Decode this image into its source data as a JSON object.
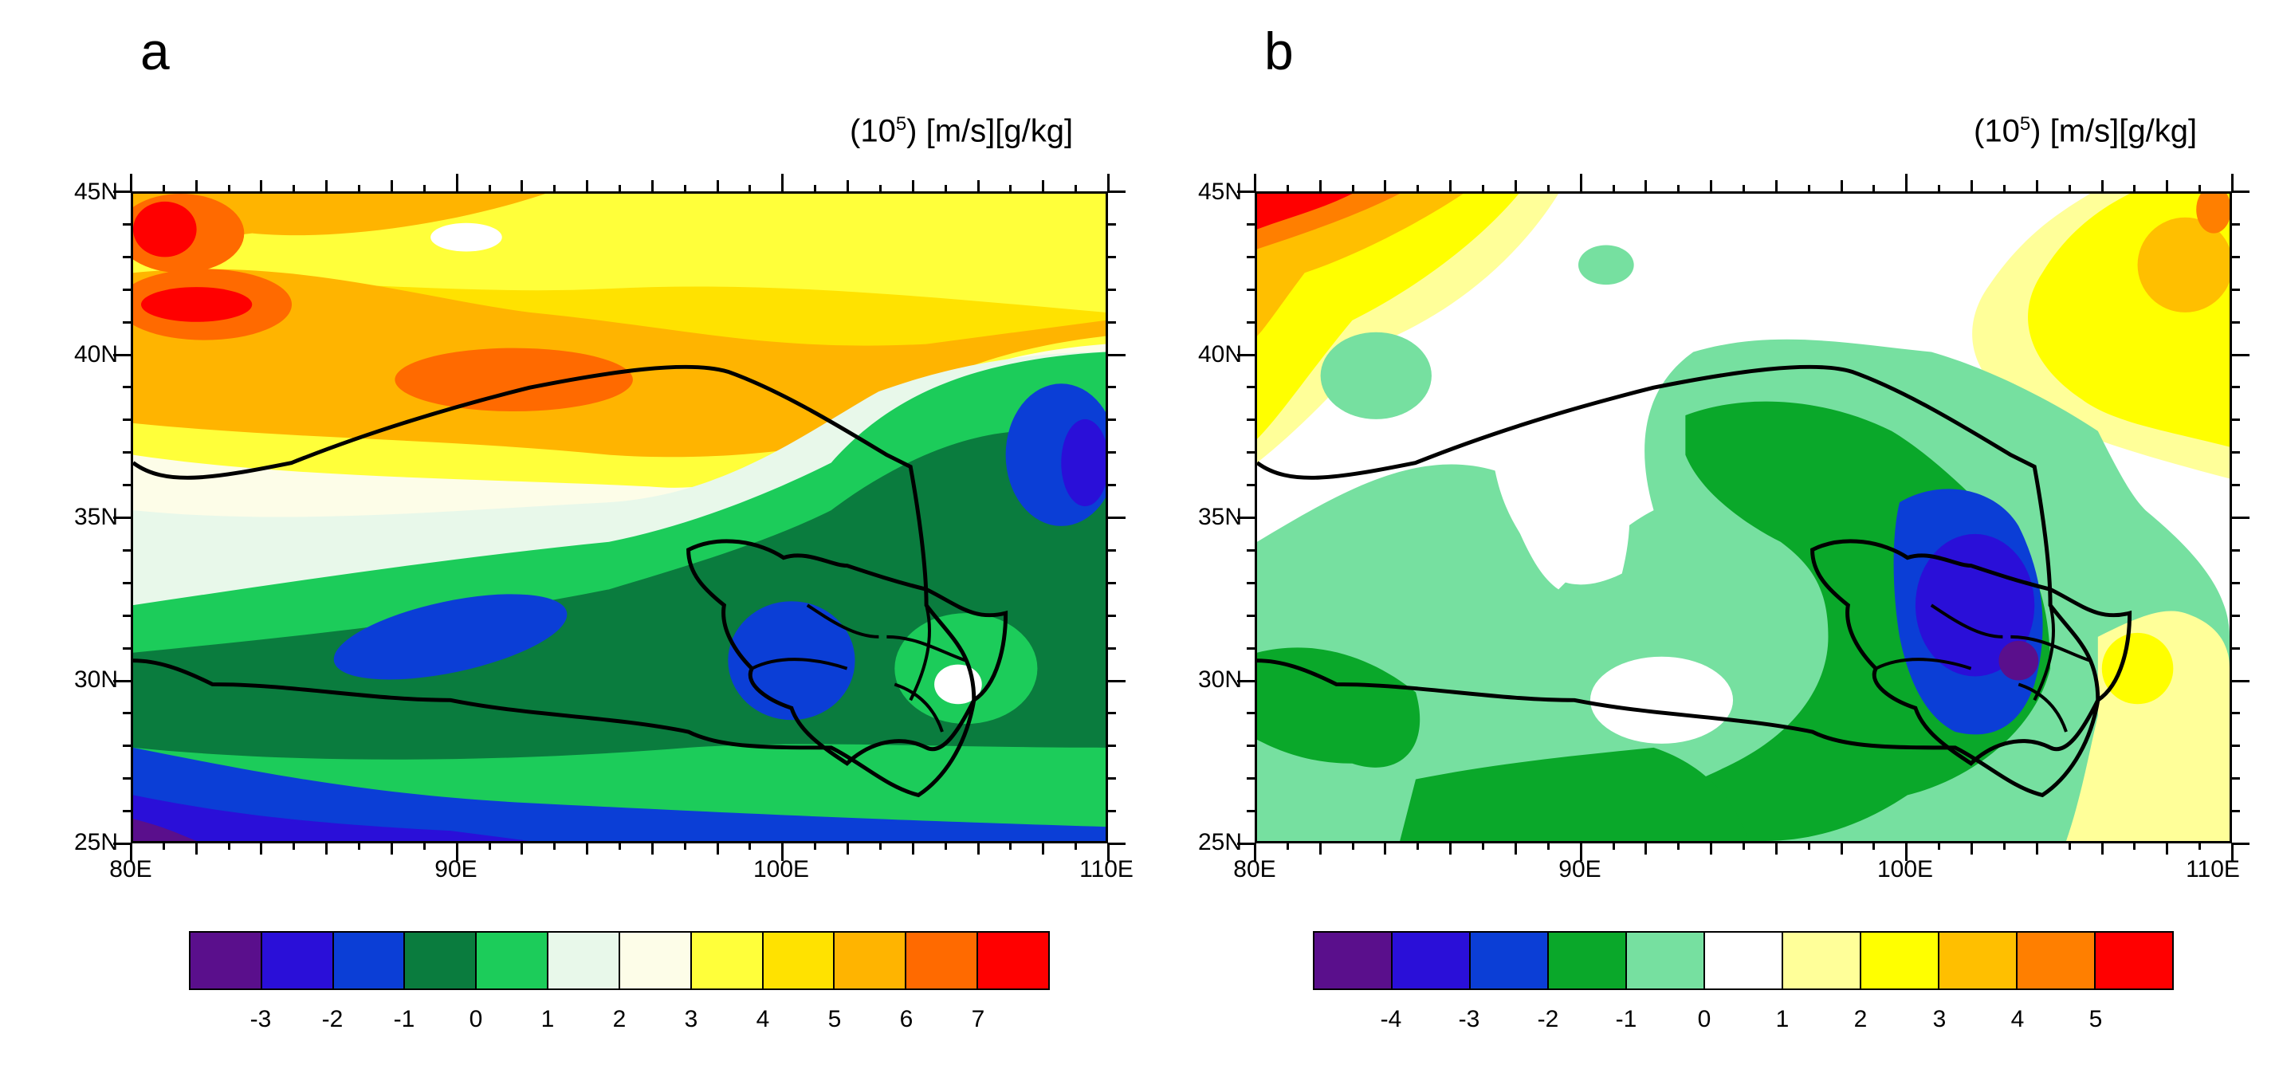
{
  "panels": [
    {
      "label": "a",
      "units_prefix": "(10",
      "units_exp": "5",
      "units_suffix": ") [m/s][g/kg]",
      "lat_labels": [
        "45N",
        "40N",
        "35N",
        "30N",
        "25N"
      ],
      "lon_labels": [
        "80E",
        "90E",
        "100E",
        "110E"
      ],
      "colorbar_colors": [
        "#5a0f8c",
        "#2a0fd8",
        "#0b3ed6",
        "#0a7c3e",
        "#1ccc5a",
        "#e8f8ea",
        "#fdfde8",
        "#ffff3a",
        "#ffe200",
        "#ffb400",
        "#ff6a00",
        "#ff0000"
      ],
      "colorbar_labels": [
        "-3",
        "-2",
        "-1",
        "0",
        "1",
        "2",
        "3",
        "4",
        "5",
        "6",
        "7"
      ]
    },
    {
      "label": "b",
      "units_prefix": "(10",
      "units_exp": "5",
      "units_suffix": ") [m/s][g/kg]",
      "lat_labels": [
        "45N",
        "40N",
        "35N",
        "30N",
        "25N"
      ],
      "lon_labels": [
        "80E",
        "90E",
        "100E",
        "110E"
      ],
      "colorbar_colors": [
        "#5a0f8c",
        "#2a0fd8",
        "#0b3ed6",
        "#0aa82a",
        "#76e0a0",
        "#ffffff",
        "#ffff99",
        "#ffff00",
        "#ffbf00",
        "#ff7f00",
        "#ff0000"
      ],
      "colorbar_labels": [
        "-4",
        "-3",
        "-2",
        "-1",
        "0",
        "1",
        "2",
        "3",
        "4",
        "5"
      ]
    }
  ]
}
